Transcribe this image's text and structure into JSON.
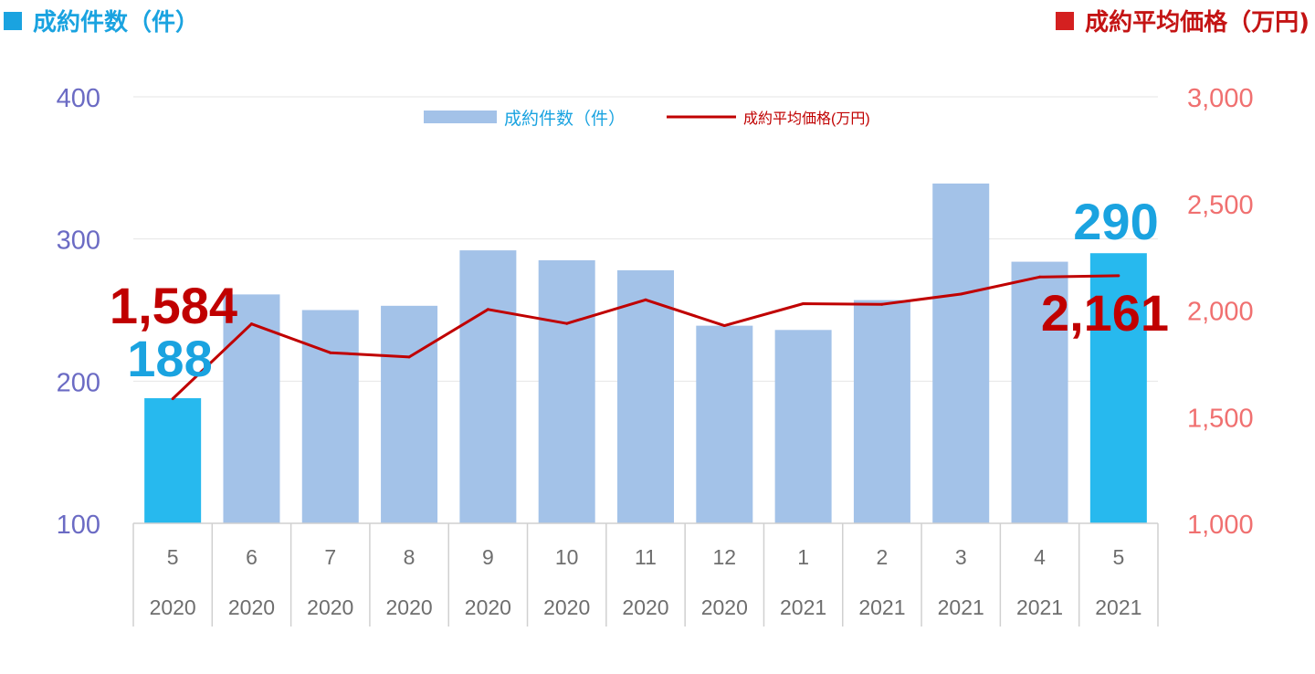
{
  "titles": {
    "left": "成約件数（件）",
    "right": "成約平均価格（万円)"
  },
  "colors": {
    "bar": "#a3c2e8",
    "bar_highlight": "#27b9ee",
    "line": "#c00000",
    "left_axis": "#6b6bc4",
    "right_axis": "#f07070",
    "callout_blue": "#1aa3e0",
    "callout_red": "#c00000"
  },
  "chart_data": {
    "type": "bar",
    "categories": [
      "5",
      "6",
      "7",
      "8",
      "9",
      "10",
      "11",
      "12",
      "1",
      "2",
      "3",
      "4",
      "5"
    ],
    "years": [
      "2020",
      "2020",
      "2020",
      "2020",
      "2020",
      "2020",
      "2020",
      "2020",
      "2021",
      "2021",
      "2021",
      "2021",
      "2021"
    ],
    "series": [
      {
        "name": "成約件数（件）",
        "type": "bar",
        "axis": "left",
        "values": [
          188,
          261,
          250,
          253,
          292,
          285,
          278,
          239,
          236,
          257,
          339,
          284,
          290
        ],
        "highlighted_indices": [
          0,
          12
        ]
      },
      {
        "name": "成約平均価格(万円)",
        "type": "line",
        "axis": "right",
        "values": [
          1584,
          1935,
          1800,
          1780,
          2003,
          1937,
          2048,
          1927,
          2030,
          2027,
          2075,
          2155,
          2161
        ]
      }
    ],
    "y_left": {
      "ylim": [
        100,
        400
      ],
      "ticks": [
        "100",
        "200",
        "300",
        "400"
      ]
    },
    "y_right": {
      "ylim": [
        1000,
        3000
      ],
      "ticks": [
        "1,000",
        "1,500",
        "2,000",
        "2,500",
        "3,000"
      ]
    },
    "callouts": {
      "first_count": "188",
      "last_count": "290",
      "first_price": "1,584",
      "last_price": "2,161"
    },
    "grid": true,
    "legend": "top-center"
  }
}
